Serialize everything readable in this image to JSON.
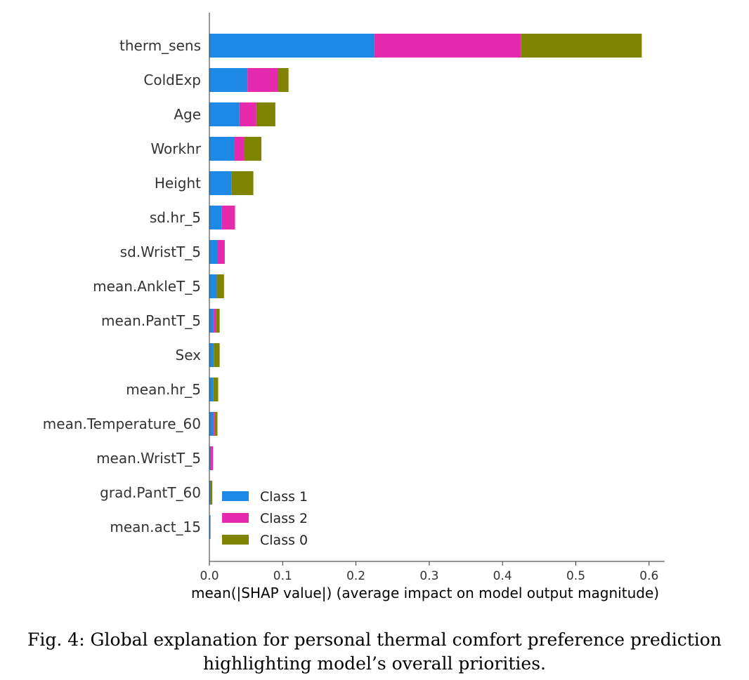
{
  "chart_data": {
    "type": "bar",
    "orientation": "horizontal",
    "stacked": true,
    "categories": [
      "therm_sens",
      "ColdExp",
      "Age",
      "Workhr",
      "Height",
      "sd.hr_5",
      "sd.WristT_5",
      "mean.AnkleT_5",
      "mean.PantT_5",
      "Sex",
      "mean.hr_5",
      "mean.Temperature_60",
      "mean.WristT_5",
      "grad.PantT_60",
      "mean.act_15"
    ],
    "series": [
      {
        "name": "Class 1",
        "color": "#1e88e5",
        "values": [
          0.225,
          0.052,
          0.041,
          0.034,
          0.03,
          0.017,
          0.011,
          0.01,
          0.006,
          0.006,
          0.005,
          0.005,
          0.002,
          0.001,
          0.0015
        ]
      },
      {
        "name": "Class 2",
        "color": "#e52aae",
        "values": [
          0.2,
          0.042,
          0.023,
          0.013,
          0.0,
          0.018,
          0.01,
          0.0,
          0.003,
          0.0,
          0.0,
          0.002,
          0.003,
          0.0,
          0.0
        ]
      },
      {
        "name": "Class 0",
        "color": "#7f8400",
        "values": [
          0.165,
          0.014,
          0.026,
          0.024,
          0.03,
          0.0,
          0.0,
          0.01,
          0.005,
          0.008,
          0.007,
          0.004,
          0.0,
          0.003,
          0.0
        ]
      }
    ],
    "xlabel": "mean(|SHAP value|) (average impact on model output magnitude)",
    "xticks": [
      0.0,
      0.1,
      0.2,
      0.3,
      0.4,
      0.5,
      0.6
    ],
    "xtick_labels": [
      "0.0",
      "0.1",
      "0.2",
      "0.3",
      "0.4",
      "0.5",
      "0.6"
    ],
    "xlim": [
      0.0,
      0.62
    ],
    "grid": false,
    "legend_position": "lower-center",
    "legend_entries": [
      "Class 1",
      "Class 2",
      "Class 0"
    ]
  },
  "caption": {
    "line1": "Fig. 4: Global explanation for personal thermal comfort preference prediction",
    "line2": "highlighting model’s overall priorities."
  }
}
